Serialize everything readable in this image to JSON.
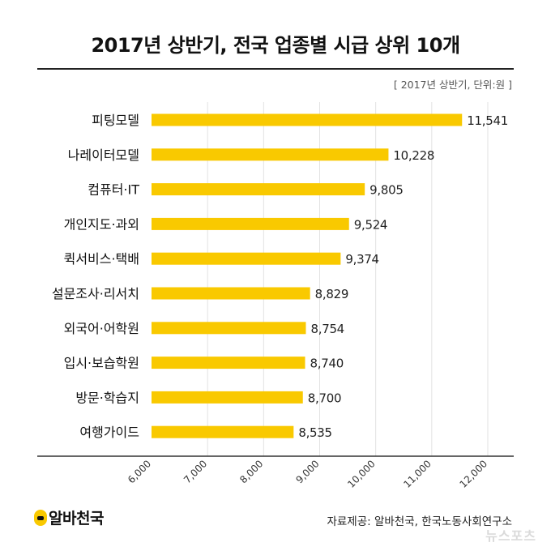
{
  "header": {
    "title": "2017년 상반기, 전국 업종별 시급 상위 10개",
    "subtitle": "[ 2017년 상반기, 단위:원 ]"
  },
  "footer": {
    "brand": "알바천국",
    "source": "자료제공: 알바천국, 한국노동사회연구소",
    "watermark": "뉴스포츠"
  },
  "colors": {
    "bar": "#f9c900",
    "grid": "#e2e2e2",
    "axis": "#333333"
  },
  "chart_data": {
    "type": "bar",
    "orientation": "horizontal",
    "title": "2017년 상반기, 전국 업종별 시급 상위 10개",
    "categories": [
      "피팅모델",
      "나레이터모델",
      "컴퓨터·IT",
      "개인지도·과외",
      "퀵서비스·택배",
      "설문조사·리서치",
      "외국어·어학원",
      "입시·보습학원",
      "방문·학습지",
      "여행가이드"
    ],
    "values": [
      11541,
      10228,
      9805,
      9524,
      9374,
      8829,
      8754,
      8740,
      8700,
      8535
    ],
    "value_labels": [
      "11,541",
      "10,228",
      "9,805",
      "9,524",
      "9,374",
      "8,829",
      "8,754",
      "8,740",
      "8,700",
      "8,535"
    ],
    "xlim": [
      6000,
      12000
    ],
    "xticks": [
      6000,
      7000,
      8000,
      9000,
      10000,
      11000,
      12000
    ],
    "xtick_labels": [
      "6,000",
      "7,000",
      "8,000",
      "9,000",
      "10,000",
      "11,000",
      "12,000"
    ],
    "grid": true
  }
}
